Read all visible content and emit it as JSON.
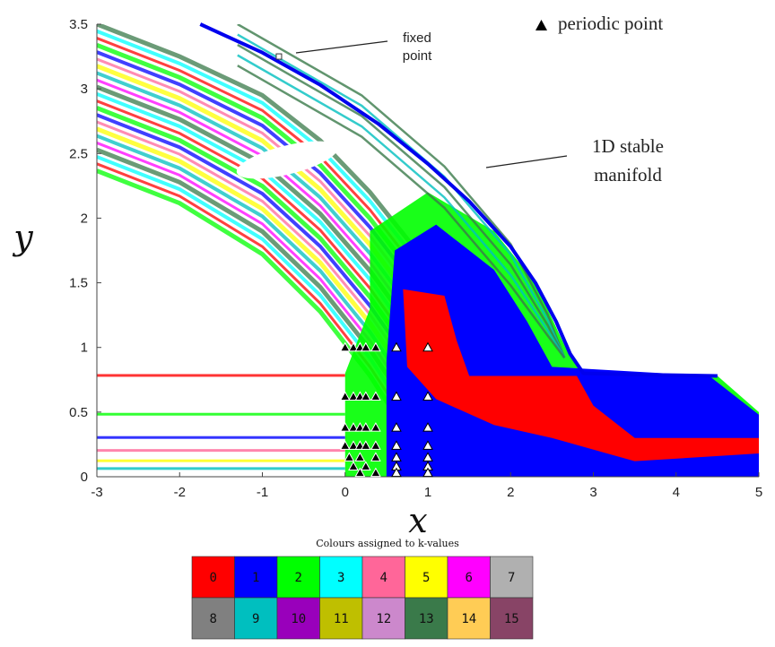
{
  "chart_data": {
    "type": "scatter",
    "title": "",
    "xlabel": "x",
    "ylabel": "y",
    "xlim": [
      -3,
      5
    ],
    "ylim": [
      0,
      3.5
    ],
    "xticks": [
      "-3",
      "-2",
      "-1",
      "0",
      "1",
      "2",
      "3",
      "4",
      "5"
    ],
    "yticks": [
      "0",
      "0.5",
      "1",
      "1.5",
      "2",
      "2.5",
      "3",
      "3.5"
    ],
    "grid": false,
    "legend": {
      "label": "periodic point",
      "marker": "triangle",
      "placement": "top-right"
    },
    "annotations": {
      "fixed_point_line1": "fixed",
      "fixed_point_line2": "point",
      "manifold_line1": "1D stable",
      "manifold_line2": "manifold"
    },
    "fixed_point": {
      "x": -0.8,
      "y": 3.25
    },
    "stable_manifold": {
      "color": "#0000ee",
      "points": [
        [
          -1.75,
          3.5
        ],
        [
          -1.0,
          3.28
        ],
        [
          -0.3,
          3.03
        ],
        [
          0.4,
          2.73
        ],
        [
          1.0,
          2.42
        ],
        [
          1.5,
          2.13
        ],
        [
          2.0,
          1.78
        ],
        [
          2.3,
          1.5
        ],
        [
          2.55,
          1.2
        ],
        [
          2.72,
          0.95
        ],
        [
          2.88,
          0.8
        ],
        [
          3.5,
          0.79
        ],
        [
          4.5,
          0.78
        ]
      ]
    },
    "periodic_points": [
      {
        "x": 0.0,
        "y": 1.0
      },
      {
        "x": 0.1,
        "y": 1.0
      },
      {
        "x": 0.18,
        "y": 1.0
      },
      {
        "x": 0.25,
        "y": 1.0
      },
      {
        "x": 0.37,
        "y": 1.0
      },
      {
        "x": 0.62,
        "y": 1.0
      },
      {
        "x": 1.0,
        "y": 1.0
      },
      {
        "x": 0.0,
        "y": 0.62
      },
      {
        "x": 0.1,
        "y": 0.62
      },
      {
        "x": 0.18,
        "y": 0.62
      },
      {
        "x": 0.25,
        "y": 0.62
      },
      {
        "x": 0.37,
        "y": 0.62
      },
      {
        "x": 0.62,
        "y": 0.62
      },
      {
        "x": 1.0,
        "y": 0.62
      },
      {
        "x": 0.0,
        "y": 0.38
      },
      {
        "x": 0.1,
        "y": 0.38
      },
      {
        "x": 0.18,
        "y": 0.38
      },
      {
        "x": 0.25,
        "y": 0.38
      },
      {
        "x": 0.37,
        "y": 0.38
      },
      {
        "x": 0.62,
        "y": 0.38
      },
      {
        "x": 1.0,
        "y": 0.38
      },
      {
        "x": 0.0,
        "y": 0.24
      },
      {
        "x": 0.1,
        "y": 0.24
      },
      {
        "x": 0.18,
        "y": 0.24
      },
      {
        "x": 0.25,
        "y": 0.24
      },
      {
        "x": 0.37,
        "y": 0.24
      },
      {
        "x": 0.62,
        "y": 0.24
      },
      {
        "x": 1.0,
        "y": 0.24
      },
      {
        "x": 0.05,
        "y": 0.15
      },
      {
        "x": 0.18,
        "y": 0.15
      },
      {
        "x": 0.37,
        "y": 0.15
      },
      {
        "x": 0.62,
        "y": 0.15
      },
      {
        "x": 1.0,
        "y": 0.15
      },
      {
        "x": 0.1,
        "y": 0.08
      },
      {
        "x": 0.25,
        "y": 0.08
      },
      {
        "x": 0.62,
        "y": 0.08
      },
      {
        "x": 1.0,
        "y": 0.08
      },
      {
        "x": 0.18,
        "y": 0.03
      },
      {
        "x": 0.37,
        "y": 0.03
      },
      {
        "x": 0.62,
        "y": 0.03
      },
      {
        "x": 1.0,
        "y": 0.03
      }
    ],
    "colorbar": {
      "title": "Colours assigned to k-values",
      "entries": [
        {
          "k": "0",
          "color": "#ff0000"
        },
        {
          "k": "1",
          "color": "#0000ff"
        },
        {
          "k": "2",
          "color": "#00ff00"
        },
        {
          "k": "3",
          "color": "#00ffff"
        },
        {
          "k": "4",
          "color": "#ff6699"
        },
        {
          "k": "5",
          "color": "#ffff00"
        },
        {
          "k": "6",
          "color": "#ff00ff"
        },
        {
          "k": "7",
          "color": "#b0b0b0"
        },
        {
          "k": "8",
          "color": "#808080"
        },
        {
          "k": "9",
          "color": "#00bfbf"
        },
        {
          "k": "10",
          "color": "#9900bb"
        },
        {
          "k": "11",
          "color": "#bfbf00"
        },
        {
          "k": "12",
          "color": "#cc88cc"
        },
        {
          "k": "13",
          "color": "#3a7a4a"
        },
        {
          "k": "14",
          "color": "#ffcc55"
        },
        {
          "k": "15",
          "color": "#884466"
        }
      ]
    }
  }
}
